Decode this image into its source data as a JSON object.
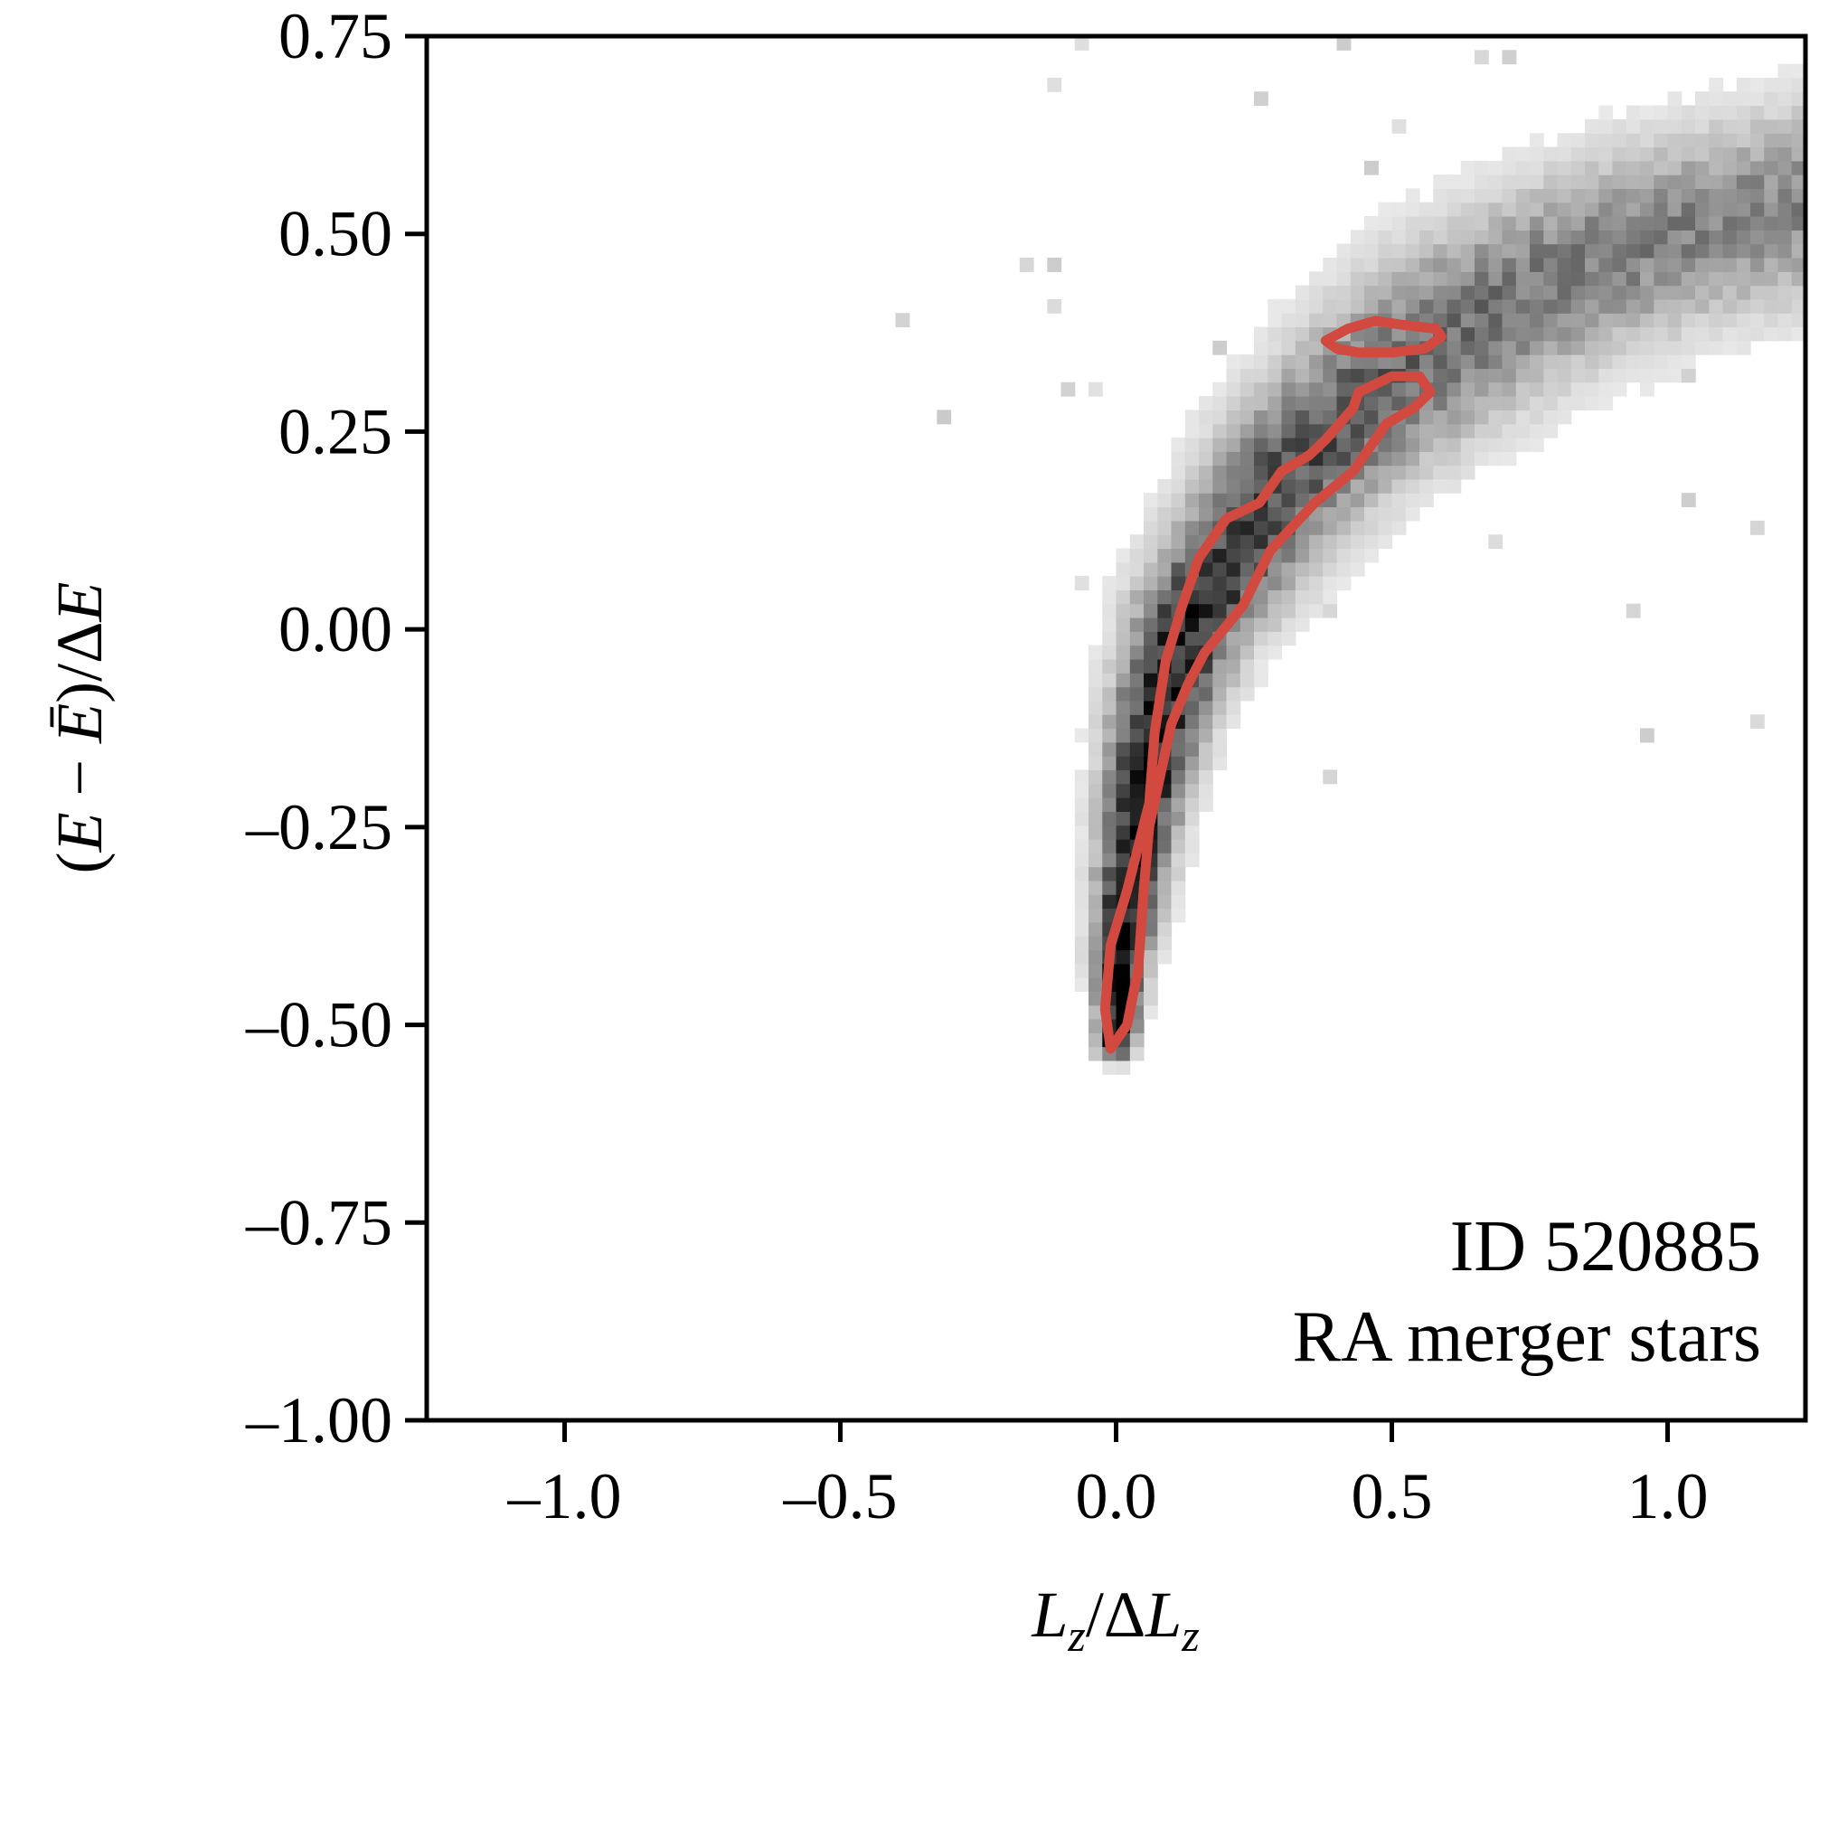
{
  "chart_data": {
    "type": "heatmap",
    "title": "",
    "xlabel": "L_z/ΔL_z",
    "ylabel": "(E − Ē)/ΔE",
    "xlim": [
      -1.25,
      1.25
    ],
    "ylim": [
      -1.0,
      0.75
    ],
    "xticks": [
      -1.0,
      -0.5,
      0.0,
      0.5,
      1.0
    ],
    "xtick_labels": [
      "–1.0",
      "–0.5",
      "0.0",
      "0.5",
      "1.0"
    ],
    "yticks": [
      0.75,
      0.5,
      0.25,
      0.0,
      -0.25,
      -0.5,
      -0.75,
      -1.0
    ],
    "ytick_labels": [
      "0.75",
      "0.50",
      "0.25",
      "0.00",
      "–0.25",
      "–0.50",
      "–0.75",
      "–1.00"
    ],
    "grid": false,
    "colormap": "greys",
    "annotations": [
      "ID 520885",
      "RA merger stars"
    ],
    "density_ridge": [
      {
        "x": 0.0,
        "y": -0.52,
        "width": 0.02,
        "peak": 1.0
      },
      {
        "x": 0.01,
        "y": -0.4,
        "width": 0.03,
        "peak": 1.0
      },
      {
        "x": 0.04,
        "y": -0.25,
        "width": 0.04,
        "peak": 0.95
      },
      {
        "x": 0.08,
        "y": -0.1,
        "width": 0.05,
        "peak": 0.92
      },
      {
        "x": 0.14,
        "y": 0.02,
        "width": 0.06,
        "peak": 0.85
      },
      {
        "x": 0.22,
        "y": 0.1,
        "width": 0.07,
        "peak": 0.75
      },
      {
        "x": 0.32,
        "y": 0.2,
        "width": 0.08,
        "peak": 0.68
      },
      {
        "x": 0.45,
        "y": 0.29,
        "width": 0.09,
        "peak": 0.62
      },
      {
        "x": 0.6,
        "y": 0.37,
        "width": 0.1,
        "peak": 0.55
      },
      {
        "x": 0.8,
        "y": 0.45,
        "width": 0.1,
        "peak": 0.5
      },
      {
        "x": 1.0,
        "y": 0.5,
        "width": 0.1,
        "peak": 0.47
      },
      {
        "x": 1.25,
        "y": 0.54,
        "width": 0.1,
        "peak": 0.45
      }
    ],
    "contours": [
      {
        "name": "",
        "color": "#d2493f",
        "points": [
          [
            -0.01,
            -0.53
          ],
          [
            0.02,
            -0.5
          ],
          [
            0.04,
            -0.43
          ],
          [
            0.05,
            -0.33
          ],
          [
            0.06,
            -0.25
          ],
          [
            0.1,
            -0.12
          ],
          [
            0.13,
            -0.07
          ],
          [
            0.16,
            -0.03
          ],
          [
            0.23,
            0.03
          ],
          [
            0.28,
            0.1
          ],
          [
            0.36,
            0.16
          ],
          [
            0.43,
            0.2
          ],
          [
            0.47,
            0.24
          ],
          [
            0.49,
            0.26
          ],
          [
            0.54,
            0.28
          ],
          [
            0.57,
            0.3
          ],
          [
            0.55,
            0.32
          ],
          [
            0.5,
            0.32
          ],
          [
            0.44,
            0.3
          ],
          [
            0.43,
            0.28
          ],
          [
            0.38,
            0.24
          ],
          [
            0.35,
            0.22
          ],
          [
            0.3,
            0.2
          ],
          [
            0.26,
            0.16
          ],
          [
            0.2,
            0.14
          ],
          [
            0.15,
            0.09
          ],
          [
            0.12,
            0.03
          ],
          [
            0.09,
            -0.04
          ],
          [
            0.07,
            -0.13
          ],
          [
            0.06,
            -0.22
          ],
          [
            0.02,
            -0.33
          ],
          [
            -0.01,
            -0.4
          ],
          [
            -0.02,
            -0.48
          ],
          [
            -0.01,
            -0.53
          ]
        ]
      },
      {
        "name": "",
        "color": "#d2493f",
        "points": [
          [
            0.38,
            0.365
          ],
          [
            0.42,
            0.38
          ],
          [
            0.47,
            0.39
          ],
          [
            0.52,
            0.385
          ],
          [
            0.58,
            0.38
          ],
          [
            0.59,
            0.37
          ],
          [
            0.56,
            0.355
          ],
          [
            0.5,
            0.35
          ],
          [
            0.44,
            0.35
          ],
          [
            0.4,
            0.355
          ],
          [
            0.38,
            0.365
          ]
        ]
      }
    ]
  }
}
